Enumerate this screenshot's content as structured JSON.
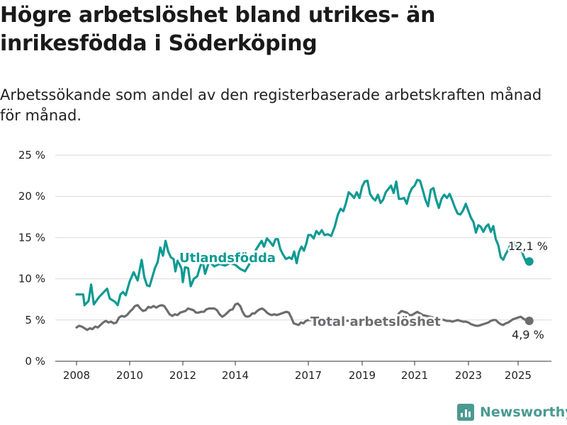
{
  "header": {
    "title": "Högre arbetslöshet bland utrikes- än inrikesfödda i Söderköping",
    "subtitle": "Arbetssökande som andel av den registerbaserade arbetskraften månad för månad."
  },
  "brand": {
    "name": "Newsworthy"
  },
  "colors": {
    "utlandsfodda": "#0e9a93",
    "total": "#6d6d70",
    "grid": "#d9d9d9",
    "text": "#222222"
  },
  "chart_data": {
    "type": "line",
    "ylim": [
      0,
      25
    ],
    "y_ticks": [
      0,
      5,
      10,
      15,
      20,
      25
    ],
    "y_tick_labels": [
      "0 %",
      "5 %",
      "10 %",
      "15 %",
      "20 %",
      "25 %"
    ],
    "x_ticks": [
      2008,
      2010,
      2012,
      2014,
      2017,
      2019,
      2021,
      2023,
      2025
    ],
    "x_tick_labels": [
      "2008",
      "2010",
      "2012",
      "2014",
      "2017",
      "2019",
      "2021",
      "2023",
      "2025"
    ],
    "xlim": [
      2007.6,
      2026.4
    ],
    "grid": true,
    "series": [
      {
        "name": "Utlandsfödda",
        "end_label": "12,1 %",
        "points": [
          [
            2008.0,
            8.1
          ],
          [
            2008.25,
            8.1
          ],
          [
            2008.3,
            6.8
          ],
          [
            2008.45,
            7.3
          ],
          [
            2008.55,
            9.3
          ],
          [
            2008.65,
            6.9
          ],
          [
            2008.85,
            7.8
          ],
          [
            2009.0,
            8.3
          ],
          [
            2009.15,
            8.8
          ],
          [
            2009.25,
            7.6
          ],
          [
            2009.45,
            7.2
          ],
          [
            2009.55,
            6.8
          ],
          [
            2009.65,
            8.1
          ],
          [
            2009.75,
            8.4
          ],
          [
            2009.85,
            8.0
          ],
          [
            2010.0,
            9.7
          ],
          [
            2010.15,
            10.8
          ],
          [
            2010.3,
            9.8
          ],
          [
            2010.45,
            12.3
          ],
          [
            2010.55,
            10.2
          ],
          [
            2010.65,
            9.2
          ],
          [
            2010.75,
            9.1
          ],
          [
            2010.95,
            11.3
          ],
          [
            2011.05,
            12.0
          ],
          [
            2011.15,
            13.8
          ],
          [
            2011.25,
            12.8
          ],
          [
            2011.35,
            14.6
          ],
          [
            2011.45,
            13.3
          ],
          [
            2011.55,
            12.6
          ],
          [
            2011.65,
            12.4
          ],
          [
            2011.72,
            10.9
          ],
          [
            2011.8,
            12.2
          ],
          [
            2011.87,
            11.8
          ],
          [
            2011.95,
            11.2
          ],
          [
            2012.0,
            9.6
          ],
          [
            2012.08,
            11.4
          ],
          [
            2012.2,
            11.3
          ],
          [
            2012.3,
            9.1
          ],
          [
            2012.42,
            10.0
          ],
          [
            2012.55,
            10.3
          ],
          [
            2012.65,
            11.4
          ],
          [
            2012.75,
            12.2
          ],
          [
            2012.85,
            10.6
          ],
          [
            2013.0,
            12.1
          ],
          [
            2013.2,
            11.5
          ],
          [
            2013.4,
            11.8
          ],
          [
            2013.6,
            11.6
          ],
          [
            2013.8,
            11.9
          ],
          [
            2014.0,
            11.7
          ],
          [
            2014.2,
            11.2
          ],
          [
            2014.4,
            10.9
          ],
          [
            2014.6,
            11.9
          ],
          [
            2014.8,
            13.3
          ],
          [
            2014.95,
            14.0
          ],
          [
            2015.08,
            14.6
          ],
          [
            2015.18,
            13.9
          ],
          [
            2015.3,
            14.9
          ],
          [
            2015.42,
            14.5
          ],
          [
            2015.55,
            14.0
          ],
          [
            2015.65,
            14.8
          ],
          [
            2015.75,
            14.8
          ],
          [
            2015.85,
            13.6
          ],
          [
            2015.95,
            13.0
          ],
          [
            2016.08,
            12.4
          ],
          [
            2016.22,
            12.6
          ],
          [
            2016.32,
            12.4
          ],
          [
            2016.42,
            13.3
          ],
          [
            2016.52,
            11.9
          ],
          [
            2016.62,
            13.3
          ],
          [
            2016.72,
            13.9
          ],
          [
            2016.82,
            13.4
          ],
          [
            2016.92,
            14.3
          ],
          [
            2017.0,
            15.3
          ],
          [
            2017.1,
            15.3
          ],
          [
            2017.2,
            14.9
          ],
          [
            2017.3,
            15.8
          ],
          [
            2017.4,
            15.4
          ],
          [
            2017.5,
            15.9
          ],
          [
            2017.6,
            15.3
          ],
          [
            2017.72,
            15.4
          ],
          [
            2017.85,
            15.2
          ],
          [
            2017.98,
            16.3
          ],
          [
            2018.1,
            17.8
          ],
          [
            2018.2,
            18.5
          ],
          [
            2018.3,
            18.2
          ],
          [
            2018.4,
            19.2
          ],
          [
            2018.5,
            20.5
          ],
          [
            2018.6,
            20.2
          ],
          [
            2018.7,
            19.8
          ],
          [
            2018.8,
            20.5
          ],
          [
            2018.9,
            19.8
          ],
          [
            2019.0,
            21.2
          ],
          [
            2019.1,
            21.8
          ],
          [
            2019.2,
            21.9
          ],
          [
            2019.3,
            20.3
          ],
          [
            2019.4,
            19.8
          ],
          [
            2019.5,
            19.5
          ],
          [
            2019.6,
            20.2
          ],
          [
            2019.7,
            19.2
          ],
          [
            2019.8,
            19.6
          ],
          [
            2019.9,
            20.5
          ],
          [
            2020.0,
            20.9
          ],
          [
            2020.1,
            21.3
          ],
          [
            2020.2,
            20.4
          ],
          [
            2020.3,
            21.8
          ],
          [
            2020.4,
            19.7
          ],
          [
            2020.5,
            19.7
          ],
          [
            2020.6,
            19.8
          ],
          [
            2020.7,
            19.1
          ],
          [
            2020.8,
            20.3
          ],
          [
            2020.9,
            21.0
          ],
          [
            2021.0,
            21.3
          ],
          [
            2021.1,
            22.0
          ],
          [
            2021.2,
            21.9
          ],
          [
            2021.3,
            20.8
          ],
          [
            2021.4,
            19.6
          ],
          [
            2021.5,
            18.8
          ],
          [
            2021.6,
            20.8
          ],
          [
            2021.7,
            21.0
          ],
          [
            2021.8,
            19.6
          ],
          [
            2021.9,
            18.6
          ],
          [
            2022.0,
            19.7
          ],
          [
            2022.1,
            20.2
          ],
          [
            2022.2,
            19.8
          ],
          [
            2022.3,
            20.3
          ],
          [
            2022.4,
            19.5
          ],
          [
            2022.5,
            18.6
          ],
          [
            2022.6,
            17.9
          ],
          [
            2022.7,
            17.8
          ],
          [
            2022.8,
            18.3
          ],
          [
            2022.9,
            19.1
          ],
          [
            2023.0,
            18.2
          ],
          [
            2023.1,
            17.4
          ],
          [
            2023.2,
            16.9
          ],
          [
            2023.3,
            15.6
          ],
          [
            2023.4,
            16.5
          ],
          [
            2023.5,
            16.3
          ],
          [
            2023.6,
            15.7
          ],
          [
            2023.7,
            16.3
          ],
          [
            2023.8,
            16.6
          ],
          [
            2023.9,
            15.7
          ],
          [
            2024.0,
            16.4
          ],
          [
            2024.1,
            14.8
          ],
          [
            2024.2,
            14.1
          ],
          [
            2024.3,
            12.6
          ],
          [
            2024.4,
            12.3
          ],
          [
            2024.5,
            13.0
          ],
          [
            2024.6,
            13.5
          ],
          [
            2024.7,
            14.2
          ],
          [
            2024.8,
            14.5
          ],
          [
            2024.9,
            14.2
          ],
          [
            2025.0,
            13.7
          ],
          [
            2025.1,
            13.9
          ],
          [
            2025.2,
            12.9
          ],
          [
            2025.3,
            12.2
          ],
          [
            2025.45,
            12.1
          ]
        ]
      },
      {
        "name": "Total arbetslöshet",
        "end_label": "4,9 %",
        "points": [
          [
            2008.0,
            4.1
          ],
          [
            2008.1,
            4.3
          ],
          [
            2008.2,
            4.2
          ],
          [
            2008.3,
            4.0
          ],
          [
            2008.4,
            3.8
          ],
          [
            2008.5,
            4.0
          ],
          [
            2008.6,
            3.9
          ],
          [
            2008.7,
            4.2
          ],
          [
            2008.8,
            4.1
          ],
          [
            2008.9,
            4.4
          ],
          [
            2009.0,
            4.7
          ],
          [
            2009.1,
            4.9
          ],
          [
            2009.2,
            4.7
          ],
          [
            2009.3,
            4.8
          ],
          [
            2009.4,
            4.6
          ],
          [
            2009.5,
            4.7
          ],
          [
            2009.6,
            5.3
          ],
          [
            2009.7,
            5.5
          ],
          [
            2009.8,
            5.4
          ],
          [
            2009.9,
            5.6
          ],
          [
            2010.0,
            6.0
          ],
          [
            2010.1,
            6.3
          ],
          [
            2010.2,
            6.7
          ],
          [
            2010.3,
            6.8
          ],
          [
            2010.4,
            6.4
          ],
          [
            2010.5,
            6.1
          ],
          [
            2010.6,
            6.2
          ],
          [
            2010.7,
            6.6
          ],
          [
            2010.8,
            6.5
          ],
          [
            2010.9,
            6.7
          ],
          [
            2011.0,
            6.5
          ],
          [
            2011.1,
            6.7
          ],
          [
            2011.2,
            6.8
          ],
          [
            2011.3,
            6.7
          ],
          [
            2011.4,
            6.2
          ],
          [
            2011.5,
            5.7
          ],
          [
            2011.6,
            5.5
          ],
          [
            2011.7,
            5.7
          ],
          [
            2011.8,
            5.6
          ],
          [
            2011.9,
            5.9
          ],
          [
            2012.0,
            6.0
          ],
          [
            2012.1,
            6.1
          ],
          [
            2012.2,
            6.4
          ],
          [
            2012.3,
            6.3
          ],
          [
            2012.4,
            6.2
          ],
          [
            2012.5,
            5.9
          ],
          [
            2012.6,
            5.9
          ],
          [
            2012.7,
            6.0
          ],
          [
            2012.8,
            6.0
          ],
          [
            2012.9,
            6.3
          ],
          [
            2013.0,
            6.4
          ],
          [
            2013.1,
            6.4
          ],
          [
            2013.2,
            6.4
          ],
          [
            2013.3,
            6.2
          ],
          [
            2013.4,
            5.7
          ],
          [
            2013.5,
            5.4
          ],
          [
            2013.6,
            5.6
          ],
          [
            2013.7,
            5.9
          ],
          [
            2013.8,
            6.2
          ],
          [
            2013.9,
            6.3
          ],
          [
            2014.0,
            6.9
          ],
          [
            2014.1,
            7.0
          ],
          [
            2014.2,
            6.7
          ],
          [
            2014.3,
            6.0
          ],
          [
            2014.4,
            5.5
          ],
          [
            2014.5,
            5.4
          ],
          [
            2014.6,
            5.5
          ],
          [
            2014.7,
            5.8
          ],
          [
            2014.8,
            5.8
          ],
          [
            2014.9,
            6.1
          ],
          [
            2015.0,
            6.3
          ],
          [
            2015.1,
            6.4
          ],
          [
            2015.2,
            6.2
          ],
          [
            2015.3,
            5.9
          ],
          [
            2015.4,
            5.7
          ],
          [
            2015.5,
            5.6
          ],
          [
            2015.6,
            5.7
          ],
          [
            2015.7,
            5.6
          ],
          [
            2015.8,
            5.7
          ],
          [
            2015.9,
            5.8
          ],
          [
            2016.0,
            5.9
          ],
          [
            2016.1,
            6.0
          ],
          [
            2016.2,
            5.9
          ],
          [
            2016.3,
            5.3
          ],
          [
            2016.4,
            4.6
          ],
          [
            2016.5,
            4.5
          ],
          [
            2016.6,
            4.4
          ],
          [
            2016.7,
            4.7
          ],
          [
            2016.8,
            4.6
          ],
          [
            2016.9,
            4.9
          ],
          [
            2017.0,
            5.0
          ],
          [
            2020.2,
            4.8
          ],
          [
            2020.3,
            5.3
          ],
          [
            2020.4,
            5.8
          ],
          [
            2020.5,
            6.1
          ],
          [
            2020.6,
            6.0
          ],
          [
            2020.7,
            5.9
          ],
          [
            2020.8,
            5.6
          ],
          [
            2020.9,
            5.6
          ],
          [
            2021.0,
            5.8
          ],
          [
            2021.1,
            6.0
          ],
          [
            2021.2,
            5.8
          ],
          [
            2021.3,
            5.6
          ],
          [
            2022.1,
            5.0
          ],
          [
            2022.2,
            4.9
          ],
          [
            2022.3,
            4.9
          ],
          [
            2022.4,
            4.8
          ],
          [
            2022.5,
            4.9
          ],
          [
            2022.6,
            5.0
          ],
          [
            2022.7,
            4.9
          ],
          [
            2022.8,
            4.8
          ],
          [
            2022.9,
            4.8
          ],
          [
            2023.0,
            4.7
          ],
          [
            2023.1,
            4.5
          ],
          [
            2023.2,
            4.4
          ],
          [
            2023.3,
            4.3
          ],
          [
            2023.4,
            4.3
          ],
          [
            2023.5,
            4.4
          ],
          [
            2023.6,
            4.5
          ],
          [
            2023.7,
            4.6
          ],
          [
            2023.8,
            4.7
          ],
          [
            2023.9,
            4.9
          ],
          [
            2024.0,
            5.0
          ],
          [
            2024.1,
            5.0
          ],
          [
            2024.2,
            4.7
          ],
          [
            2024.3,
            4.5
          ],
          [
            2024.4,
            4.4
          ],
          [
            2024.5,
            4.6
          ],
          [
            2024.6,
            4.7
          ],
          [
            2024.7,
            4.9
          ],
          [
            2024.8,
            5.1
          ],
          [
            2024.9,
            5.2
          ],
          [
            2025.0,
            5.3
          ],
          [
            2025.1,
            5.4
          ],
          [
            2025.2,
            5.2
          ],
          [
            2025.3,
            5.0
          ],
          [
            2025.45,
            4.9
          ]
        ]
      }
    ]
  }
}
